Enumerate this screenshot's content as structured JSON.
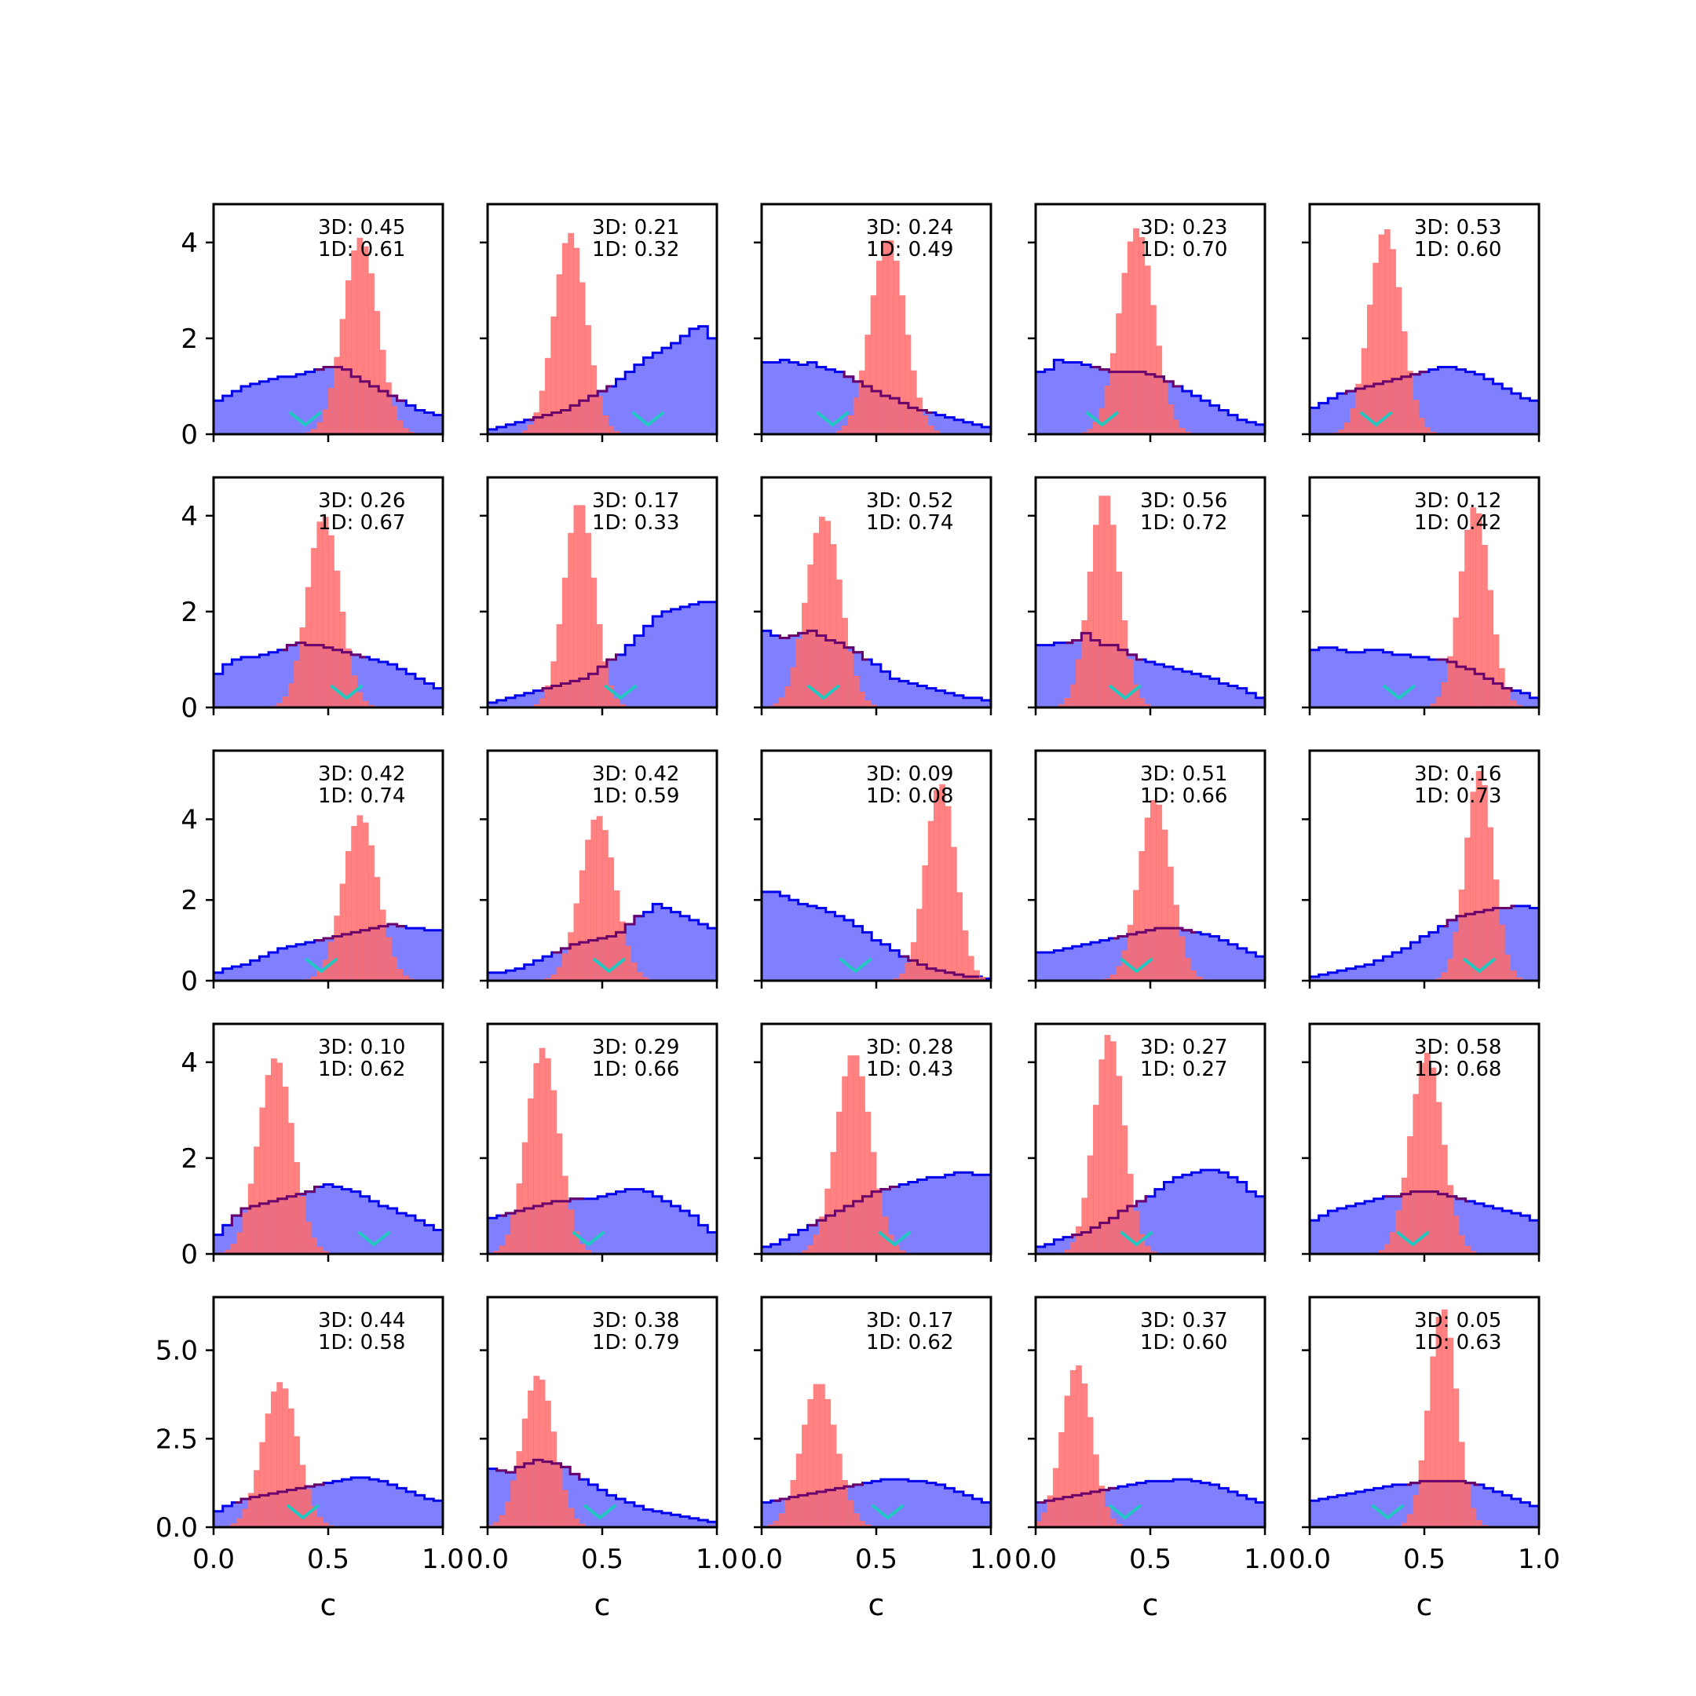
{
  "colors": {
    "blue_fill": "#8080ff",
    "blue_line": "#0000ee",
    "red_fill": "#ff6b6b",
    "overlap_line": "#6a006a",
    "marker": "#20c8c0",
    "frame": "#000000"
  },
  "chart_data": {
    "type": "histogram-grid",
    "rows": 5,
    "cols": 5,
    "xlabel": "c",
    "xlim": [
      0,
      1
    ],
    "xticks": [
      "0.0",
      "0.5",
      "1.0"
    ],
    "row_ylim": [
      [
        0,
        4.8
      ],
      [
        0,
        4.8
      ],
      [
        0,
        5.7
      ],
      [
        0,
        4.8
      ],
      [
        0,
        6.5
      ]
    ],
    "row_yticks": [
      [
        "0",
        "2",
        "4"
      ],
      [
        "0",
        "2",
        "4"
      ],
      [
        "0",
        "2",
        "4"
      ],
      [
        "0",
        "2",
        "4"
      ],
      [
        "0.0",
        "2.5",
        "5.0"
      ]
    ],
    "panels": [
      {
        "label_3d": "3D: 0.45",
        "label_1d": "1D: 0.61",
        "red_center": 0.64,
        "red_width": 0.075,
        "red_peak": 4.1,
        "blue": [
          0.7,
          0.8,
          0.9,
          1.0,
          1.05,
          1.1,
          1.15,
          1.2,
          1.2,
          1.25,
          1.3,
          1.35,
          1.4,
          1.4,
          1.35,
          1.2,
          1.1,
          1.0,
          0.9,
          0.8,
          0.7,
          0.6,
          0.5,
          0.45,
          0.4
        ],
        "marker": 0.4
      },
      {
        "label_3d": "3D: 0.21",
        "label_1d": "1D: 0.32",
        "red_center": 0.36,
        "red_width": 0.07,
        "red_peak": 4.2,
        "blue": [
          0.1,
          0.15,
          0.2,
          0.25,
          0.3,
          0.35,
          0.4,
          0.45,
          0.5,
          0.6,
          0.7,
          0.8,
          0.9,
          1.0,
          1.15,
          1.3,
          1.45,
          1.6,
          1.7,
          1.8,
          1.9,
          2.05,
          2.2,
          2.25,
          2.0
        ],
        "marker": 0.7
      },
      {
        "label_3d": "3D: 0.24",
        "label_1d": "1D: 0.49",
        "red_center": 0.55,
        "red_width": 0.075,
        "red_peak": 4.1,
        "blue": [
          1.5,
          1.5,
          1.55,
          1.5,
          1.45,
          1.5,
          1.4,
          1.35,
          1.3,
          1.2,
          1.1,
          1.0,
          0.9,
          0.8,
          0.75,
          0.65,
          0.55,
          0.5,
          0.45,
          0.4,
          0.35,
          0.3,
          0.25,
          0.2,
          0.15
        ],
        "marker": 0.31
      },
      {
        "label_3d": "3D: 0.23",
        "label_1d": "1D: 0.70",
        "red_center": 0.44,
        "red_width": 0.075,
        "red_peak": 4.3,
        "blue": [
          1.3,
          1.35,
          1.55,
          1.5,
          1.5,
          1.45,
          1.4,
          1.35,
          1.3,
          1.3,
          1.3,
          1.3,
          1.25,
          1.2,
          1.1,
          1.0,
          0.9,
          0.8,
          0.7,
          0.6,
          0.5,
          0.4,
          0.3,
          0.25,
          0.2
        ],
        "marker": 0.29
      },
      {
        "label_3d": "3D: 0.53",
        "label_1d": "1D: 0.60",
        "red_center": 0.33,
        "red_width": 0.07,
        "red_peak": 4.3,
        "blue": [
          0.55,
          0.65,
          0.75,
          0.85,
          0.9,
          0.95,
          1.0,
          1.05,
          1.1,
          1.15,
          1.2,
          1.25,
          1.3,
          1.35,
          1.4,
          1.4,
          1.35,
          1.3,
          1.25,
          1.15,
          1.05,
          0.95,
          0.85,
          0.75,
          0.7
        ],
        "marker": 0.29
      }
    ],
    "panels_row2": [
      {
        "label_3d": "3D: 0.26",
        "label_1d": "1D: 0.67",
        "red_center": 0.48,
        "red_width": 0.07,
        "red_peak": 4.0,
        "blue": [
          0.7,
          0.9,
          1.0,
          1.05,
          1.05,
          1.1,
          1.15,
          1.2,
          1.3,
          1.35,
          1.3,
          1.3,
          1.25,
          1.2,
          1.15,
          1.1,
          1.05,
          1.0,
          0.95,
          0.9,
          0.8,
          0.7,
          0.6,
          0.5,
          0.4
        ],
        "marker": 0.58
      },
      {
        "label_3d": "3D: 0.17",
        "label_1d": "1D: 0.33",
        "red_center": 0.4,
        "red_width": 0.065,
        "red_peak": 4.3,
        "blue": [
          0.1,
          0.15,
          0.2,
          0.25,
          0.3,
          0.35,
          0.4,
          0.45,
          0.5,
          0.55,
          0.6,
          0.7,
          0.85,
          1.0,
          1.1,
          1.3,
          1.5,
          1.7,
          1.9,
          2.0,
          2.05,
          2.1,
          2.15,
          2.2,
          2.2
        ],
        "marker": 0.58
      },
      {
        "label_3d": "3D: 0.52",
        "label_1d": "1D: 0.74",
        "red_center": 0.27,
        "red_width": 0.075,
        "red_peak": 4.0,
        "blue": [
          1.6,
          1.5,
          1.45,
          1.5,
          1.55,
          1.6,
          1.5,
          1.4,
          1.35,
          1.25,
          1.15,
          1.0,
          0.9,
          0.75,
          0.6,
          0.55,
          0.5,
          0.45,
          0.4,
          0.35,
          0.3,
          0.25,
          0.2,
          0.2,
          0.15
        ],
        "marker": 0.27
      },
      {
        "label_3d": "3D: 0.56",
        "label_1d": "1D: 0.72",
        "red_center": 0.3,
        "red_width": 0.065,
        "red_peak": 4.5,
        "blue": [
          1.3,
          1.3,
          1.35,
          1.35,
          1.4,
          1.55,
          1.4,
          1.3,
          1.3,
          1.2,
          1.1,
          1.0,
          0.95,
          0.9,
          0.85,
          0.8,
          0.75,
          0.7,
          0.65,
          0.6,
          0.5,
          0.45,
          0.4,
          0.3,
          0.2
        ],
        "marker": 0.39
      },
      {
        "label_3d": "3D: 0.12",
        "label_1d": "1D: 0.42",
        "red_center": 0.72,
        "red_width": 0.065,
        "red_peak": 4.2,
        "blue": [
          1.2,
          1.25,
          1.25,
          1.2,
          1.15,
          1.15,
          1.2,
          1.2,
          1.15,
          1.1,
          1.1,
          1.05,
          1.05,
          1.0,
          1.0,
          0.95,
          0.85,
          0.8,
          0.7,
          0.6,
          0.5,
          0.4,
          0.35,
          0.3,
          0.2
        ],
        "marker": 0.39
      }
    ],
    "panels_row3": [
      {
        "label_3d": "3D: 0.42",
        "label_1d": "1D: 0.74",
        "red_center": 0.64,
        "red_width": 0.075,
        "red_peak": 4.1,
        "blue": [
          0.2,
          0.3,
          0.35,
          0.4,
          0.5,
          0.6,
          0.7,
          0.8,
          0.85,
          0.9,
          0.95,
          1.0,
          1.05,
          1.1,
          1.15,
          1.2,
          1.25,
          1.3,
          1.35,
          1.4,
          1.35,
          1.3,
          1.3,
          1.25,
          1.25
        ],
        "marker": 0.47
      },
      {
        "label_3d": "3D: 0.42",
        "label_1d": "1D: 0.59",
        "red_center": 0.48,
        "red_width": 0.075,
        "red_peak": 4.1,
        "blue": [
          0.2,
          0.2,
          0.25,
          0.3,
          0.4,
          0.5,
          0.6,
          0.7,
          0.8,
          0.9,
          0.95,
          1.0,
          1.05,
          1.1,
          1.2,
          1.4,
          1.6,
          1.7,
          1.9,
          1.8,
          1.7,
          1.6,
          1.5,
          1.4,
          1.3
        ],
        "marker": 0.53
      },
      {
        "label_3d": "3D: 0.09",
        "label_1d": "1D: 0.08",
        "red_center": 0.78,
        "red_width": 0.065,
        "red_peak": 4.9,
        "blue": [
          2.2,
          2.2,
          2.1,
          2.0,
          1.9,
          1.85,
          1.8,
          1.7,
          1.6,
          1.5,
          1.35,
          1.2,
          1.0,
          0.9,
          0.75,
          0.6,
          0.5,
          0.4,
          0.3,
          0.25,
          0.2,
          0.15,
          0.1,
          0.1,
          0.05
        ],
        "marker": 0.41
      },
      {
        "label_3d": "3D: 0.51",
        "label_1d": "1D: 0.66",
        "red_center": 0.52,
        "red_width": 0.07,
        "red_peak": 4.5,
        "blue": [
          0.7,
          0.7,
          0.75,
          0.8,
          0.85,
          0.9,
          0.95,
          1.0,
          1.05,
          1.1,
          1.15,
          1.2,
          1.25,
          1.3,
          1.3,
          1.3,
          1.25,
          1.2,
          1.15,
          1.1,
          1.0,
          0.9,
          0.8,
          0.7,
          0.6
        ],
        "marker": 0.44
      },
      {
        "label_3d": "3D: 0.16",
        "label_1d": "1D: 0.73",
        "red_center": 0.74,
        "red_width": 0.06,
        "red_peak": 5.2,
        "blue": [
          0.1,
          0.15,
          0.2,
          0.25,
          0.3,
          0.35,
          0.4,
          0.5,
          0.6,
          0.7,
          0.8,
          0.95,
          1.1,
          1.2,
          1.35,
          1.5,
          1.6,
          1.65,
          1.7,
          1.75,
          1.8,
          1.8,
          1.85,
          1.85,
          1.8
        ],
        "marker": 0.74
      }
    ],
    "panels_row4": [
      {
        "label_3d": "3D: 0.10",
        "label_1d": "1D: 0.62",
        "red_center": 0.27,
        "red_width": 0.075,
        "red_peak": 4.1,
        "blue": [
          0.4,
          0.6,
          0.8,
          0.95,
          1.0,
          1.05,
          1.1,
          1.15,
          1.2,
          1.25,
          1.3,
          1.4,
          1.45,
          1.4,
          1.35,
          1.3,
          1.2,
          1.1,
          1.0,
          0.95,
          0.85,
          0.8,
          0.7,
          0.6,
          0.5
        ],
        "marker": 0.7
      },
      {
        "label_3d": "3D: 0.29",
        "label_1d": "1D: 0.66",
        "red_center": 0.24,
        "red_width": 0.07,
        "red_peak": 4.3,
        "blue": [
          0.75,
          0.8,
          0.85,
          0.9,
          0.95,
          1.0,
          1.05,
          1.1,
          1.1,
          1.15,
          1.15,
          1.15,
          1.2,
          1.25,
          1.3,
          1.35,
          1.35,
          1.3,
          1.2,
          1.1,
          1.0,
          0.9,
          0.8,
          0.6,
          0.45
        ],
        "marker": 0.44
      },
      {
        "label_3d": "3D: 0.28",
        "label_1d": "1D: 0.43",
        "red_center": 0.4,
        "red_width": 0.075,
        "red_peak": 4.2,
        "blue": [
          0.15,
          0.2,
          0.3,
          0.4,
          0.5,
          0.6,
          0.7,
          0.8,
          0.9,
          1.0,
          1.1,
          1.2,
          1.3,
          1.35,
          1.4,
          1.45,
          1.5,
          1.55,
          1.6,
          1.6,
          1.65,
          1.7,
          1.7,
          1.65,
          1.65
        ],
        "marker": 0.58
      },
      {
        "label_3d": "3D: 0.27",
        "label_1d": "1D: 0.27",
        "red_center": 0.32,
        "red_width": 0.065,
        "red_peak": 4.6,
        "blue": [
          0.15,
          0.2,
          0.3,
          0.35,
          0.4,
          0.45,
          0.55,
          0.65,
          0.75,
          0.9,
          1.0,
          1.1,
          1.2,
          1.35,
          1.5,
          1.6,
          1.65,
          1.7,
          1.75,
          1.75,
          1.7,
          1.6,
          1.5,
          1.3,
          1.2
        ],
        "marker": 0.44
      },
      {
        "label_3d": "3D: 0.58",
        "label_1d": "1D: 0.68",
        "red_center": 0.51,
        "red_width": 0.07,
        "red_peak": 4.2,
        "blue": [
          0.7,
          0.8,
          0.9,
          0.95,
          1.0,
          1.05,
          1.1,
          1.15,
          1.2,
          1.2,
          1.25,
          1.3,
          1.3,
          1.3,
          1.25,
          1.2,
          1.15,
          1.1,
          1.05,
          1.0,
          0.95,
          0.9,
          0.85,
          0.8,
          0.7
        ],
        "marker": 0.45
      }
    ],
    "panels_row5": [
      {
        "label_3d": "3D: 0.44",
        "label_1d": "1D: 0.58",
        "red_center": 0.29,
        "red_width": 0.075,
        "red_peak": 4.1,
        "blue": [
          0.45,
          0.6,
          0.7,
          0.8,
          0.85,
          0.9,
          0.95,
          1.0,
          1.05,
          1.1,
          1.15,
          1.2,
          1.25,
          1.3,
          1.35,
          1.4,
          1.4,
          1.35,
          1.3,
          1.2,
          1.1,
          1.0,
          0.9,
          0.8,
          0.75
        ],
        "marker": 0.39
      },
      {
        "label_3d": "3D: 0.38",
        "label_1d": "1D: 0.79",
        "red_center": 0.22,
        "red_width": 0.07,
        "red_peak": 4.3,
        "blue": [
          1.65,
          1.6,
          1.55,
          1.7,
          1.8,
          1.9,
          1.85,
          1.8,
          1.7,
          1.5,
          1.35,
          1.2,
          1.05,
          0.9,
          0.8,
          0.7,
          0.6,
          0.5,
          0.45,
          0.4,
          0.35,
          0.3,
          0.25,
          0.2,
          0.15
        ],
        "marker": 0.49
      },
      {
        "label_3d": "3D: 0.17",
        "label_1d": "1D: 0.62",
        "red_center": 0.25,
        "red_width": 0.075,
        "red_peak": 4.1,
        "blue": [
          0.7,
          0.75,
          0.8,
          0.85,
          0.9,
          0.95,
          1.0,
          1.05,
          1.1,
          1.15,
          1.2,
          1.25,
          1.3,
          1.35,
          1.35,
          1.35,
          1.3,
          1.3,
          1.25,
          1.2,
          1.1,
          1.0,
          0.9,
          0.8,
          0.7
        ],
        "marker": 0.55
      },
      {
        "label_3d": "3D: 0.37",
        "label_1d": "1D: 0.60",
        "red_center": 0.18,
        "red_width": 0.065,
        "red_peak": 4.6,
        "blue": [
          0.7,
          0.75,
          0.8,
          0.85,
          0.9,
          0.95,
          1.0,
          1.05,
          1.1,
          1.15,
          1.2,
          1.25,
          1.3,
          1.3,
          1.3,
          1.35,
          1.35,
          1.3,
          1.25,
          1.2,
          1.1,
          1.0,
          0.9,
          0.8,
          0.7
        ],
        "marker": 0.39
      },
      {
        "label_3d": "3D: 0.05",
        "label_1d": "1D: 0.63",
        "red_center": 0.58,
        "red_width": 0.06,
        "red_peak": 6.2,
        "blue": [
          0.75,
          0.8,
          0.85,
          0.9,
          0.95,
          1.0,
          1.05,
          1.1,
          1.15,
          1.2,
          1.2,
          1.25,
          1.3,
          1.3,
          1.3,
          1.3,
          1.3,
          1.25,
          1.2,
          1.1,
          1.0,
          0.9,
          0.8,
          0.7,
          0.6
        ],
        "marker": 0.34
      }
    ]
  }
}
